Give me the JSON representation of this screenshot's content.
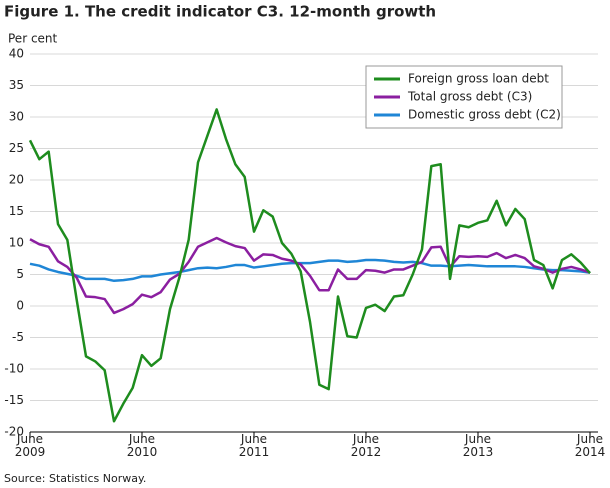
{
  "chart_data": {
    "type": "line",
    "title": "Figure 1. The credit indicator C3. 12-month growth",
    "y_label": "Per cent",
    "source": "Source: Statistics Norway.",
    "categories": [
      "June 2009",
      null,
      null,
      null,
      null,
      null,
      null,
      null,
      null,
      null,
      null,
      null,
      "June 2010",
      null,
      null,
      null,
      null,
      null,
      null,
      null,
      null,
      null,
      null,
      null,
      "June 2011",
      null,
      null,
      null,
      null,
      null,
      null,
      null,
      null,
      null,
      null,
      null,
      "June 2012",
      null,
      null,
      null,
      null,
      null,
      null,
      null,
      null,
      null,
      null,
      null,
      "June 2013",
      null,
      null,
      null,
      null,
      null,
      null,
      null,
      null,
      null,
      null,
      null,
      "June 2014"
    ],
    "series": [
      {
        "name": "Foreign gross loan debt",
        "color": "#1e8c1e",
        "values": [
          26.3,
          23.3,
          24.5,
          13,
          10.5,
          1,
          -8,
          -8.8,
          -10.2,
          -18.3,
          -15.5,
          -13,
          -7.8,
          -9.5,
          -8.3,
          -0.5,
          4.5,
          10.5,
          22.8,
          27,
          31.2,
          26.5,
          22.5,
          20.5,
          11.8,
          15.2,
          14.2,
          10,
          8.3,
          5.5,
          -2.5,
          -12.5,
          -13.2,
          1.5,
          -4.8,
          -5,
          -0.3,
          0.2,
          -0.8,
          1.5,
          1.7,
          5,
          9,
          22.2,
          22.5,
          4.3,
          12.8,
          12.5,
          13.2,
          13.6,
          16.7,
          12.8,
          15.4,
          13.8,
          7.3,
          6.5,
          2.8,
          7.3,
          8.2,
          6.9,
          5.2
        ]
      },
      {
        "name": "Total gross debt (C3)",
        "color": "#8b1fa0",
        "values": [
          10.6,
          9.8,
          9.4,
          7.1,
          6.2,
          4.5,
          1.5,
          1.4,
          1.1,
          -1.1,
          -0.5,
          0.3,
          1.8,
          1.4,
          2.2,
          4.2,
          5.1,
          7,
          9.4,
          10.1,
          10.8,
          10.1,
          9.5,
          9.2,
          7.2,
          8.2,
          8.1,
          7.5,
          7.2,
          6.6,
          4.8,
          2.5,
          2.5,
          5.8,
          4.3,
          4.3,
          5.7,
          5.6,
          5.3,
          5.8,
          5.8,
          6.4,
          7,
          9.3,
          9.4,
          6.2,
          7.9,
          7.8,
          7.9,
          7.8,
          8.4,
          7.6,
          8.1,
          7.6,
          6.3,
          5.9,
          5.3,
          5.9,
          6.2,
          5.8,
          5.3
        ]
      },
      {
        "name": "Domestic gross debt (C2)",
        "color": "#1f86d6",
        "values": [
          6.7,
          6.4,
          5.8,
          5.4,
          5.1,
          4.8,
          4.3,
          4.3,
          4.3,
          4,
          4.1,
          4.3,
          4.7,
          4.7,
          5,
          5.2,
          5.4,
          5.7,
          6,
          6.1,
          6,
          6.2,
          6.5,
          6.5,
          6.1,
          6.3,
          6.5,
          6.7,
          6.8,
          6.8,
          6.8,
          7,
          7.2,
          7.2,
          7,
          7.1,
          7.3,
          7.3,
          7.2,
          7,
          6.9,
          7,
          6.8,
          6.4,
          6.4,
          6.3,
          6.4,
          6.5,
          6.4,
          6.3,
          6.3,
          6.3,
          6.3,
          6.2,
          6,
          5.8,
          5.7,
          5.7,
          5.6,
          5.5,
          5.3
        ]
      }
    ],
    "ylim": [
      -20,
      40
    ],
    "yticks": [
      -20,
      -15,
      -10,
      -5,
      0,
      5,
      10,
      15,
      20,
      25,
      30,
      35,
      40
    ],
    "grid": true,
    "legend": "upper right"
  }
}
